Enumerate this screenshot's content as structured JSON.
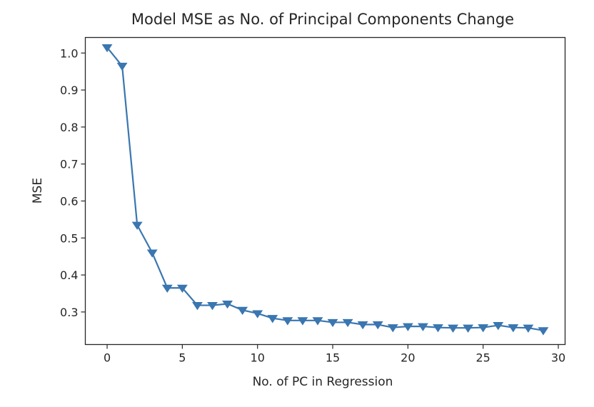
{
  "chart_data": {
    "type": "line",
    "title": "Model MSE as No. of Principal Components Change",
    "xlabel": "No. of PC in Regression",
    "ylabel": "MSE",
    "xlim": [
      -1.45,
      30.45
    ],
    "ylim": [
      0.212,
      1.042
    ],
    "xticks": [
      0,
      5,
      10,
      15,
      20,
      25,
      30
    ],
    "yticks": [
      0.3,
      0.4,
      0.5,
      0.6,
      0.7,
      0.8,
      0.9,
      1.0
    ],
    "xtick_labels": [
      "0",
      "5",
      "10",
      "15",
      "20",
      "25",
      "30"
    ],
    "ytick_labels": [
      "0.3",
      "0.4",
      "0.5",
      "0.6",
      "0.7",
      "0.8",
      "0.9",
      "1.0"
    ],
    "grid": false,
    "legend": false,
    "marker": "triangle-down",
    "color": "#3a76b0",
    "series": [
      {
        "x": [
          0,
          1,
          2,
          3,
          4,
          5,
          6,
          7,
          8,
          9,
          10,
          11,
          12,
          13,
          14,
          15,
          16,
          17,
          18,
          19,
          20,
          21,
          22,
          23,
          24,
          25,
          26,
          27,
          28,
          29
        ],
        "values": [
          1.015,
          0.965,
          0.535,
          0.46,
          0.365,
          0.365,
          0.318,
          0.318,
          0.322,
          0.305,
          0.296,
          0.283,
          0.277,
          0.277,
          0.277,
          0.272,
          0.272,
          0.266,
          0.266,
          0.258,
          0.261,
          0.261,
          0.258,
          0.257,
          0.257,
          0.258,
          0.264,
          0.258,
          0.257,
          0.25
        ]
      }
    ]
  }
}
